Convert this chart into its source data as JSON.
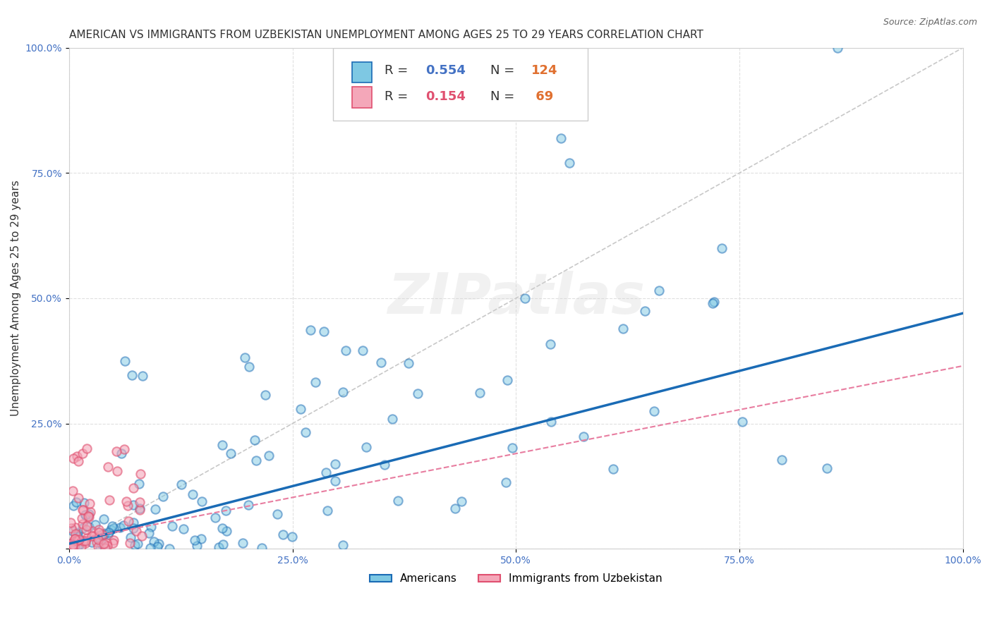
{
  "title": "AMERICAN VS IMMIGRANTS FROM UZBEKISTAN UNEMPLOYMENT AMONG AGES 25 TO 29 YEARS CORRELATION CHART",
  "source": "Source: ZipAtlas.com",
  "ylabel": "Unemployment Among Ages 25 to 29 years",
  "watermark": "ZIPatlas",
  "legend_americans": {
    "R": 0.554,
    "N": 124,
    "color": "#7ec8e3",
    "edge": "#1a6bb5"
  },
  "legend_uzbekistan": {
    "R": 0.154,
    "N": 69,
    "color": "#f4a7b9",
    "edge": "#e05070"
  },
  "blue_line_color": "#1a6bb5",
  "pink_line_color": "#e87da0",
  "dashed_line_color": "#c8c8c8",
  "xlim": [
    0.0,
    1.0
  ],
  "ylim": [
    0.0,
    1.0
  ],
  "xticks": [
    0.0,
    0.25,
    0.5,
    0.75,
    1.0
  ],
  "yticks": [
    0.0,
    0.25,
    0.5,
    0.75,
    1.0
  ],
  "xtick_labels": [
    "0.0%",
    "25.0%",
    "50.0%",
    "75.0%",
    "100.0%"
  ],
  "ytick_labels": [
    "",
    "25.0%",
    "50.0%",
    "75.0%",
    "100.0%"
  ],
  "background_color": "#ffffff",
  "grid_color": "#e0e0e0",
  "title_fontsize": 11,
  "axis_label_fontsize": 11,
  "tick_label_fontsize": 10,
  "scatter_size": 80,
  "scatter_alpha": 0.5,
  "scatter_linewidth": 1.5,
  "slope_am": 0.46,
  "intercept_am": 0.01,
  "slope_uz": 0.35,
  "intercept_uz": 0.015
}
